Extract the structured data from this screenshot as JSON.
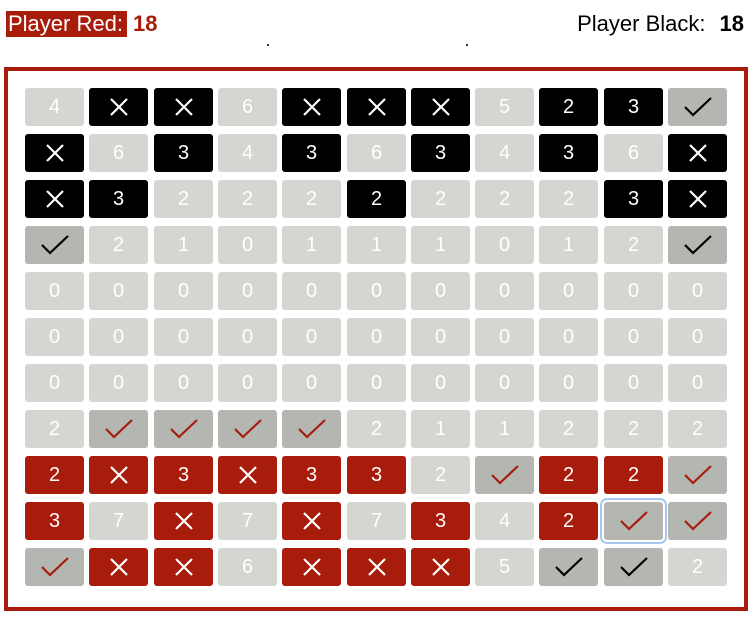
{
  "scores": {
    "red_label": "Player Red:",
    "red_score": "18",
    "black_label": "Player Black:",
    "black_score": "18"
  },
  "colors": {
    "red": "#a81c0c",
    "black": "#000000",
    "empty": "#d4d6d2",
    "claimed": "#b4b6b2",
    "selection": "#a6c8ee"
  },
  "selected": [
    9,
    9
  ],
  "board": [
    [
      {
        "t": "empty",
        "v": "4"
      },
      {
        "t": "black",
        "v": "X"
      },
      {
        "t": "black",
        "v": "X"
      },
      {
        "t": "empty",
        "v": "6"
      },
      {
        "t": "black",
        "v": "X"
      },
      {
        "t": "black",
        "v": "X"
      },
      {
        "t": "black",
        "v": "X"
      },
      {
        "t": "empty",
        "v": "5"
      },
      {
        "t": "black",
        "v": "2"
      },
      {
        "t": "black",
        "v": "3"
      },
      {
        "t": "gray",
        "v": "check",
        "c": "black"
      }
    ],
    [
      {
        "t": "black",
        "v": "X"
      },
      {
        "t": "empty",
        "v": "6"
      },
      {
        "t": "black",
        "v": "3"
      },
      {
        "t": "empty",
        "v": "4"
      },
      {
        "t": "black",
        "v": "3"
      },
      {
        "t": "empty",
        "v": "6"
      },
      {
        "t": "black",
        "v": "3"
      },
      {
        "t": "empty",
        "v": "4"
      },
      {
        "t": "black",
        "v": "3"
      },
      {
        "t": "empty",
        "v": "6"
      },
      {
        "t": "black",
        "v": "X"
      }
    ],
    [
      {
        "t": "black",
        "v": "X"
      },
      {
        "t": "black",
        "v": "3"
      },
      {
        "t": "empty",
        "v": "2"
      },
      {
        "t": "empty",
        "v": "2"
      },
      {
        "t": "empty",
        "v": "2"
      },
      {
        "t": "black",
        "v": "2"
      },
      {
        "t": "empty",
        "v": "2"
      },
      {
        "t": "empty",
        "v": "2"
      },
      {
        "t": "empty",
        "v": "2"
      },
      {
        "t": "black",
        "v": "3"
      },
      {
        "t": "black",
        "v": "X"
      }
    ],
    [
      {
        "t": "gray",
        "v": "check",
        "c": "black"
      },
      {
        "t": "empty",
        "v": "2"
      },
      {
        "t": "empty",
        "v": "1"
      },
      {
        "t": "empty",
        "v": "0"
      },
      {
        "t": "empty",
        "v": "1"
      },
      {
        "t": "empty",
        "v": "1"
      },
      {
        "t": "empty",
        "v": "1"
      },
      {
        "t": "empty",
        "v": "0"
      },
      {
        "t": "empty",
        "v": "1"
      },
      {
        "t": "empty",
        "v": "2"
      },
      {
        "t": "gray",
        "v": "check",
        "c": "black"
      }
    ],
    [
      {
        "t": "empty",
        "v": "0"
      },
      {
        "t": "empty",
        "v": "0"
      },
      {
        "t": "empty",
        "v": "0"
      },
      {
        "t": "empty",
        "v": "0"
      },
      {
        "t": "empty",
        "v": "0"
      },
      {
        "t": "empty",
        "v": "0"
      },
      {
        "t": "empty",
        "v": "0"
      },
      {
        "t": "empty",
        "v": "0"
      },
      {
        "t": "empty",
        "v": "0"
      },
      {
        "t": "empty",
        "v": "0"
      },
      {
        "t": "empty",
        "v": "0"
      }
    ],
    [
      {
        "t": "empty",
        "v": "0"
      },
      {
        "t": "empty",
        "v": "0"
      },
      {
        "t": "empty",
        "v": "0"
      },
      {
        "t": "empty",
        "v": "0"
      },
      {
        "t": "empty",
        "v": "0"
      },
      {
        "t": "empty",
        "v": "0"
      },
      {
        "t": "empty",
        "v": "0"
      },
      {
        "t": "empty",
        "v": "0"
      },
      {
        "t": "empty",
        "v": "0"
      },
      {
        "t": "empty",
        "v": "0"
      },
      {
        "t": "empty",
        "v": "0"
      }
    ],
    [
      {
        "t": "empty",
        "v": "0"
      },
      {
        "t": "empty",
        "v": "0"
      },
      {
        "t": "empty",
        "v": "0"
      },
      {
        "t": "empty",
        "v": "0"
      },
      {
        "t": "empty",
        "v": "0"
      },
      {
        "t": "empty",
        "v": "0"
      },
      {
        "t": "empty",
        "v": "0"
      },
      {
        "t": "empty",
        "v": "0"
      },
      {
        "t": "empty",
        "v": "0"
      },
      {
        "t": "empty",
        "v": "0"
      },
      {
        "t": "empty",
        "v": "0"
      }
    ],
    [
      {
        "t": "empty",
        "v": "2"
      },
      {
        "t": "gray",
        "v": "check",
        "c": "red"
      },
      {
        "t": "gray",
        "v": "check",
        "c": "red"
      },
      {
        "t": "gray",
        "v": "check",
        "c": "red"
      },
      {
        "t": "gray",
        "v": "check",
        "c": "red"
      },
      {
        "t": "empty",
        "v": "2"
      },
      {
        "t": "empty",
        "v": "1"
      },
      {
        "t": "empty",
        "v": "1"
      },
      {
        "t": "empty",
        "v": "2"
      },
      {
        "t": "empty",
        "v": "2"
      },
      {
        "t": "empty",
        "v": "2"
      }
    ],
    [
      {
        "t": "red",
        "v": "2"
      },
      {
        "t": "red",
        "v": "X"
      },
      {
        "t": "red",
        "v": "3"
      },
      {
        "t": "red",
        "v": "X"
      },
      {
        "t": "red",
        "v": "3"
      },
      {
        "t": "red",
        "v": "3"
      },
      {
        "t": "empty",
        "v": "2"
      },
      {
        "t": "gray",
        "v": "check",
        "c": "red"
      },
      {
        "t": "red",
        "v": "2"
      },
      {
        "t": "red",
        "v": "2"
      },
      {
        "t": "gray",
        "v": "check",
        "c": "red"
      }
    ],
    [
      {
        "t": "red",
        "v": "3"
      },
      {
        "t": "empty",
        "v": "7"
      },
      {
        "t": "red",
        "v": "X"
      },
      {
        "t": "empty",
        "v": "7"
      },
      {
        "t": "red",
        "v": "X"
      },
      {
        "t": "empty",
        "v": "7"
      },
      {
        "t": "red",
        "v": "3"
      },
      {
        "t": "empty",
        "v": "4"
      },
      {
        "t": "red",
        "v": "2"
      },
      {
        "t": "gray",
        "v": "check",
        "c": "red"
      },
      {
        "t": "gray",
        "v": "check",
        "c": "red"
      }
    ],
    [
      {
        "t": "gray",
        "v": "check",
        "c": "red"
      },
      {
        "t": "red",
        "v": "X"
      },
      {
        "t": "red",
        "v": "X"
      },
      {
        "t": "empty",
        "v": "6"
      },
      {
        "t": "red",
        "v": "X"
      },
      {
        "t": "red",
        "v": "X"
      },
      {
        "t": "red",
        "v": "X"
      },
      {
        "t": "empty",
        "v": "5"
      },
      {
        "t": "gray",
        "v": "check",
        "c": "black"
      },
      {
        "t": "gray",
        "v": "check",
        "c": "black"
      },
      {
        "t": "empty",
        "v": "2"
      }
    ]
  ]
}
